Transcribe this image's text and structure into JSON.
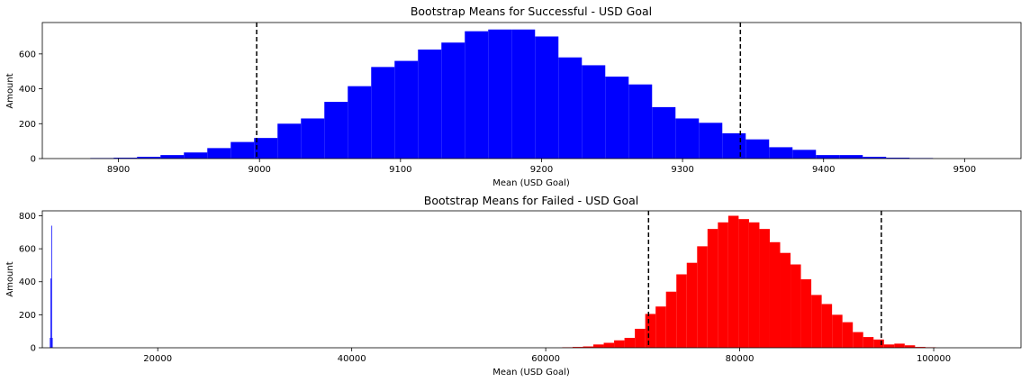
{
  "chart_data": [
    {
      "type": "bar",
      "title": "Bootstrap Means for Successful - USD Goal",
      "xlabel": "Mean (USD Goal)",
      "ylabel": "Amount",
      "xlim": [
        8846,
        9540
      ],
      "ylim": [
        0,
        780
      ],
      "xticks": [
        8900,
        9000,
        9100,
        9200,
        9300,
        9400,
        9500
      ],
      "yticks": [
        0,
        200,
        400,
        600
      ],
      "grid": false,
      "series": [
        {
          "color": "#0000ff",
          "bin_start": 8880,
          "bin_width": 16.6,
          "values": [
            3,
            5,
            10,
            20,
            35,
            60,
            95,
            118,
            200,
            230,
            325,
            415,
            525,
            560,
            625,
            665,
            730,
            740,
            740,
            700,
            580,
            535,
            470,
            425,
            295,
            230,
            205,
            145,
            110,
            65,
            50,
            20,
            20,
            10,
            5,
            3
          ]
        }
      ],
      "vlines": [
        8998,
        9341
      ]
    },
    {
      "type": "bar",
      "title": "Bootstrap Means for Failed - USD Goal",
      "xlabel": "Mean (USD Goal)",
      "ylabel": "Amount",
      "xlim": [
        8100,
        109000
      ],
      "ylim": [
        0,
        830
      ],
      "xticks": [
        20000,
        40000,
        60000,
        80000,
        100000
      ],
      "yticks": [
        0,
        200,
        400,
        600,
        800
      ],
      "grid": false,
      "series": [
        {
          "color": "#0000ff",
          "bin_start": 8880,
          "bin_width": 70,
          "values": [
            60,
            420,
            740,
            60
          ]
        },
        {
          "color": "#ff0000",
          "bin_start": 61700,
          "bin_width": 1070,
          "values": [
            3,
            5,
            8,
            20,
            30,
            45,
            60,
            115,
            205,
            250,
            340,
            445,
            515,
            615,
            720,
            760,
            800,
            780,
            760,
            720,
            640,
            575,
            505,
            415,
            320,
            265,
            200,
            155,
            95,
            65,
            50,
            20,
            25,
            15,
            5,
            3
          ]
        }
      ],
      "vlines": [
        70600,
        94600
      ]
    }
  ]
}
